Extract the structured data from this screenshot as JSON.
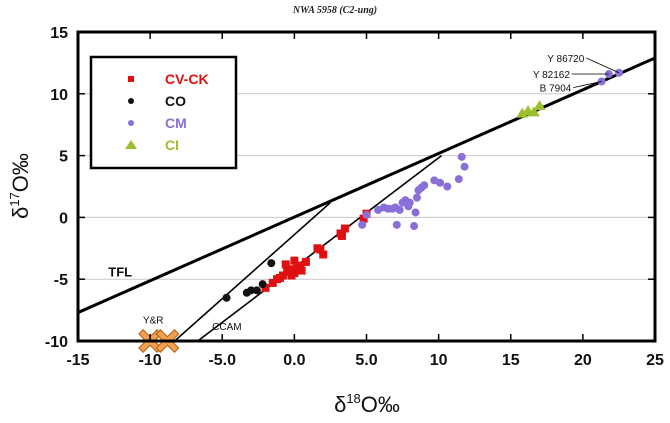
{
  "chart_data": {
    "type": "scatter",
    "title": "NWA 5958 (C2-ung)",
    "xlabel": "δ18O‰",
    "ylabel": "δ17O‰",
    "xlabel_parts": {
      "delta": "δ",
      "sup": "18",
      "rest": "O‰"
    },
    "ylabel_parts": {
      "delta": "δ",
      "sup": "17",
      "rest": "O‰"
    },
    "xlim": [
      -15,
      25
    ],
    "ylim": [
      -10,
      15
    ],
    "x_ticks": [
      -15,
      -10,
      -5,
      0,
      5,
      10,
      15,
      20,
      25
    ],
    "x_tick_labels": [
      "-15",
      "-10",
      "-5.0",
      "0.0",
      "5.0",
      "10",
      "15",
      "20",
      "25"
    ],
    "y_ticks": [
      -10,
      -5,
      0,
      5,
      10,
      15
    ],
    "y_tick_labels": [
      "-10",
      "-5",
      "0",
      "5",
      "10",
      "15"
    ],
    "grid": "horizontal",
    "legend_position": "top-left",
    "series": [
      {
        "name": "CV-CK",
        "marker": "square",
        "color": "#e01010",
        "points": [
          [
            -2.0,
            -5.7
          ],
          [
            -1.5,
            -5.3
          ],
          [
            -1.2,
            -5.0
          ],
          [
            -0.8,
            -4.7
          ],
          [
            -0.5,
            -4.4
          ],
          [
            -1.0,
            -4.9
          ],
          [
            -0.3,
            -4.2
          ],
          [
            0.0,
            -4.5
          ],
          [
            0.2,
            -4.1
          ],
          [
            -0.6,
            -3.8
          ],
          [
            0.4,
            -3.9
          ],
          [
            0.8,
            -3.6
          ],
          [
            -0.2,
            -4.7
          ],
          [
            0.5,
            -4.3
          ],
          [
            0.0,
            -3.5
          ],
          [
            1.6,
            -2.5
          ],
          [
            2.0,
            -3.0
          ],
          [
            1.8,
            -2.6
          ],
          [
            3.2,
            -1.3
          ],
          [
            3.5,
            -0.9
          ],
          [
            3.3,
            -1.5
          ],
          [
            4.8,
            -0.1
          ],
          [
            5.0,
            0.3
          ]
        ]
      },
      {
        "name": "CO",
        "marker": "circle",
        "color": "#111111",
        "points": [
          [
            -4.7,
            -6.5
          ],
          [
            -3.3,
            -6.1
          ],
          [
            -3.0,
            -5.9
          ],
          [
            -2.6,
            -5.9
          ],
          [
            -2.2,
            -5.4
          ],
          [
            -1.6,
            -3.7
          ]
        ]
      },
      {
        "name": "CM",
        "marker": "circle",
        "color": "#8a6fd8",
        "points": [
          [
            4.7,
            -0.6
          ],
          [
            5.0,
            0.2
          ],
          [
            5.8,
            0.6
          ],
          [
            6.2,
            0.8
          ],
          [
            6.5,
            0.7
          ],
          [
            6.8,
            0.7
          ],
          [
            7.0,
            0.8
          ],
          [
            7.1,
            -0.6
          ],
          [
            7.3,
            0.6
          ],
          [
            7.5,
            1.2
          ],
          [
            7.7,
            1.4
          ],
          [
            7.9,
            0.9
          ],
          [
            8.0,
            1.2
          ],
          [
            8.3,
            -0.7
          ],
          [
            8.4,
            0.4
          ],
          [
            8.5,
            1.6
          ],
          [
            8.6,
            2.2
          ],
          [
            8.8,
            2.4
          ],
          [
            9.0,
            2.6
          ],
          [
            9.7,
            3.0
          ],
          [
            10.1,
            2.8
          ],
          [
            10.6,
            2.5
          ],
          [
            11.4,
            3.1
          ],
          [
            11.6,
            4.9
          ],
          [
            11.8,
            4.1
          ],
          [
            21.3,
            11.0
          ],
          [
            21.8,
            11.6
          ],
          [
            22.5,
            11.7
          ]
        ]
      },
      {
        "name": "CI",
        "marker": "triangle",
        "color": "#9bbf2f",
        "points": [
          [
            15.8,
            8.4
          ],
          [
            16.2,
            8.6
          ],
          [
            16.6,
            8.5
          ],
          [
            17.0,
            9.0
          ]
        ]
      },
      {
        "name": "NWA 5958",
        "marker": "x",
        "color": "#f0a050",
        "show_in_legend": false,
        "points": [
          [
            -10.0,
            -10.0
          ],
          [
            -8.8,
            -10.0
          ]
        ]
      }
    ],
    "reference_lines": [
      {
        "name": "TFL",
        "x": [
          -15,
          25
        ],
        "y": [
          -7.7,
          12.9
        ],
        "weight": "thick"
      },
      {
        "name": "Y&R",
        "x": [
          -8.3,
          2.5
        ],
        "y": [
          -10.0,
          1.2
        ],
        "weight": "thin"
      },
      {
        "name": "CCAM",
        "x": [
          -6.7,
          10.2
        ],
        "y": [
          -10.0,
          5.0
        ],
        "weight": "thin"
      }
    ],
    "line_labels": [
      {
        "text": "TFL",
        "x": -12.9,
        "y": -4.8,
        "style": "big"
      },
      {
        "text": "Y&R",
        "x": -10.5,
        "y": -8.6,
        "style": "small"
      },
      {
        "text": "CCAM",
        "x": -5.7,
        "y": -9.1,
        "style": "small"
      }
    ],
    "annotations": [
      {
        "text": "Y 86720",
        "label_at": [
          20.1,
          12.9
        ],
        "points_to": [
          22.5,
          11.7
        ]
      },
      {
        "text": "Y 82162",
        "label_at": [
          19.1,
          11.6
        ],
        "points_to": [
          21.8,
          11.6
        ]
      },
      {
        "text": "B 7904",
        "label_at": [
          19.2,
          10.5
        ],
        "points_to": [
          21.3,
          11.0
        ]
      }
    ]
  }
}
